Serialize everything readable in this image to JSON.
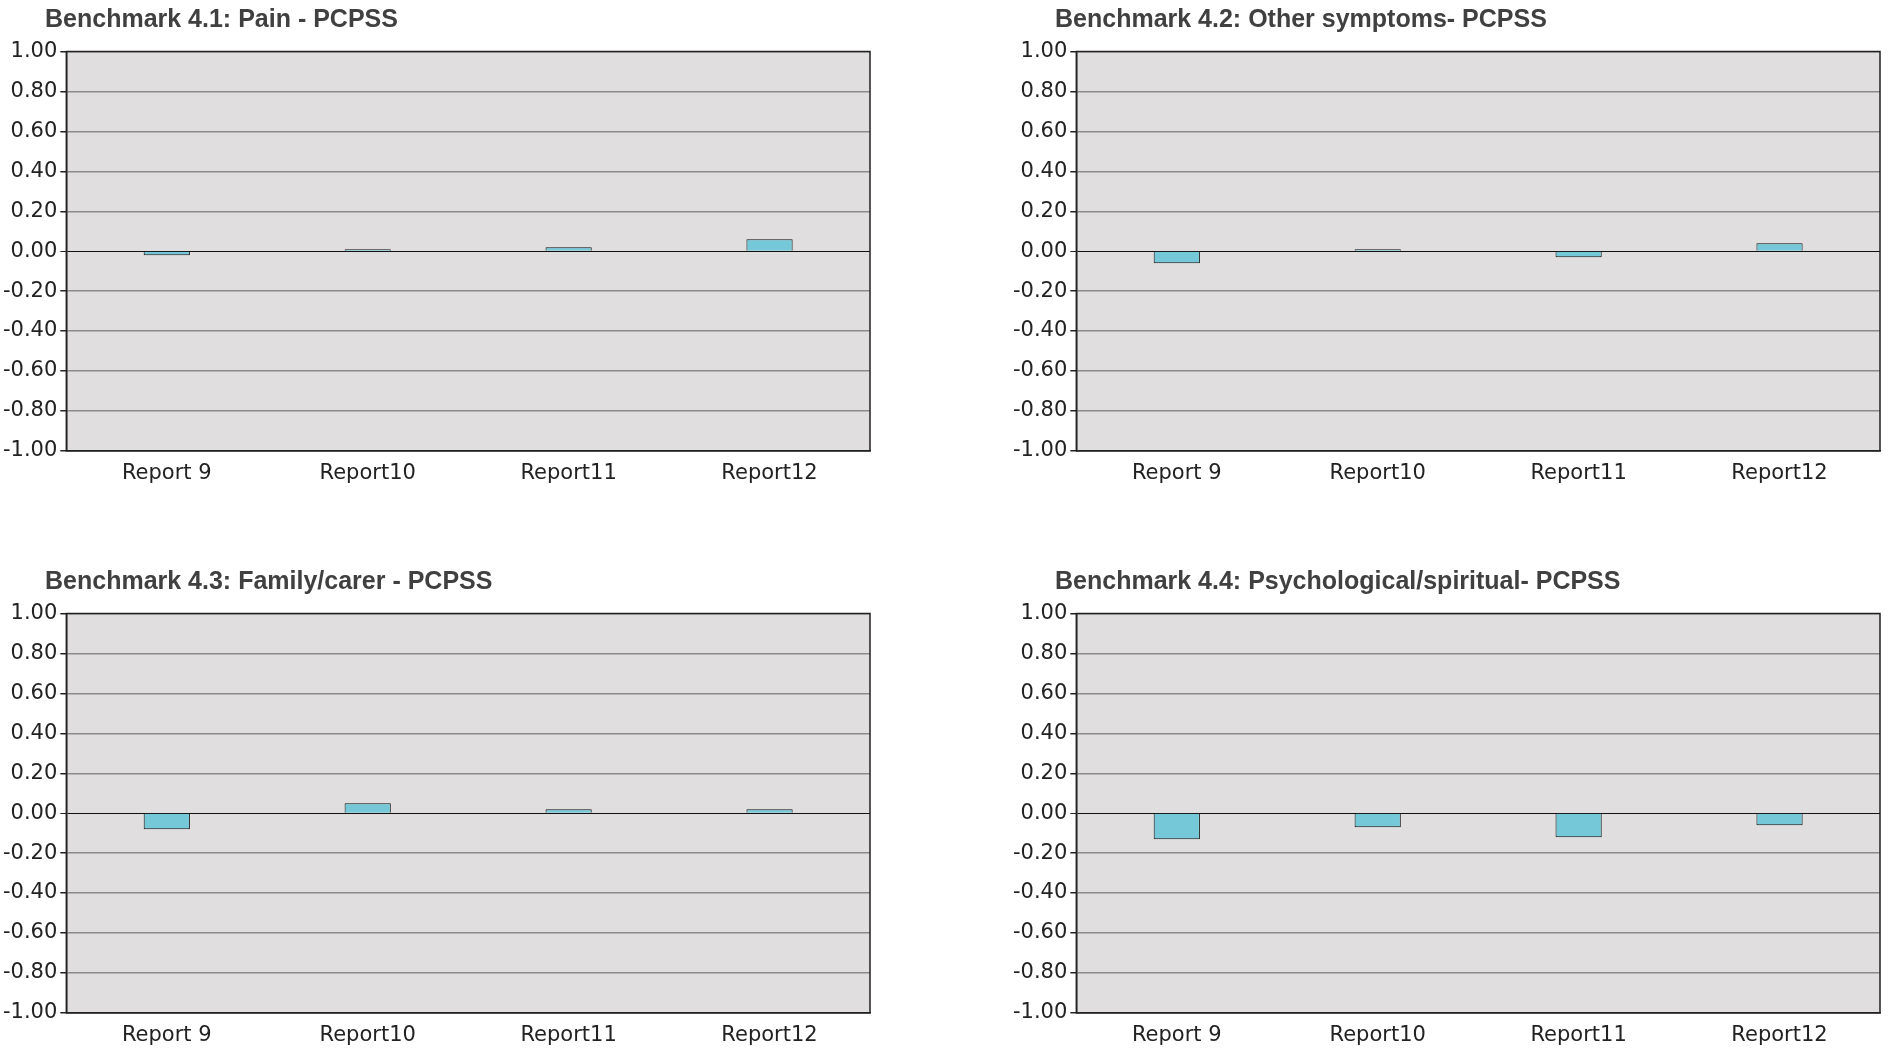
{
  "chart_data": [
    {
      "type": "bar",
      "title": "Benchmark 4.1:  Pain - PCPSS",
      "categories": [
        "Report 9",
        "Report10",
        "Report11",
        "Report12"
      ],
      "values": [
        -0.02,
        0.01,
        0.02,
        0.06
      ],
      "color": "#74c8d8",
      "ylim": [
        -1,
        1
      ],
      "yticks": [
        {
          "value": -1,
          "label": "-1.00"
        },
        {
          "value": -0.8,
          "label": "-0.80"
        },
        {
          "value": -0.6,
          "label": "-0.60"
        },
        {
          "value": -0.4,
          "label": "-0.40"
        },
        {
          "value": -0.2,
          "label": "-0.20"
        },
        {
          "value": 0,
          "label": "0.00"
        },
        {
          "value": 0.2,
          "label": "0.20"
        },
        {
          "value": 0.4,
          "label": "0.40"
        },
        {
          "value": 0.6,
          "label": "0.60"
        },
        {
          "value": 0.8,
          "label": "0.80"
        },
        {
          "value": 1,
          "label": "1.00"
        }
      ],
      "grid": "y"
    },
    {
      "type": "bar",
      "title": "Benchmark 4.2: Other symptoms- PCPSS",
      "categories": [
        "Report 9",
        "Report10",
        "Report11",
        "Report12"
      ],
      "values": [
        -0.06,
        0.01,
        -0.03,
        0.04
      ],
      "color": "#74c8d8",
      "ylim": [
        -1,
        1
      ],
      "yticks": [
        {
          "value": -1,
          "label": "-1.00"
        },
        {
          "value": -0.8,
          "label": "-0.80"
        },
        {
          "value": -0.6,
          "label": "-0.60"
        },
        {
          "value": -0.4,
          "label": "-0.40"
        },
        {
          "value": -0.2,
          "label": "-0.20"
        },
        {
          "value": 0,
          "label": "0.00"
        },
        {
          "value": 0.2,
          "label": "0.20"
        },
        {
          "value": 0.4,
          "label": "0.40"
        },
        {
          "value": 0.6,
          "label": "0.60"
        },
        {
          "value": 0.8,
          "label": "0.80"
        },
        {
          "value": 1,
          "label": "1.00"
        }
      ],
      "grid": "y"
    },
    {
      "type": "bar",
      "title": "Benchmark 4.3: Family/carer - PCPSS",
      "categories": [
        "Report 9",
        "Report10",
        "Report11",
        "Report12"
      ],
      "values": [
        -0.08,
        0.05,
        0.02,
        0.02
      ],
      "color": "#74c8d8",
      "ylim": [
        -1,
        1
      ],
      "yticks": [
        {
          "value": -1,
          "label": "-1.00"
        },
        {
          "value": -0.8,
          "label": "-0.80"
        },
        {
          "value": -0.6,
          "label": "-0.60"
        },
        {
          "value": -0.4,
          "label": "-0.40"
        },
        {
          "value": -0.2,
          "label": "-0.20"
        },
        {
          "value": 0,
          "label": "0.00"
        },
        {
          "value": 0.2,
          "label": "0.20"
        },
        {
          "value": 0.4,
          "label": "0.40"
        },
        {
          "value": 0.6,
          "label": "0.60"
        },
        {
          "value": 0.8,
          "label": "0.80"
        },
        {
          "value": 1,
          "label": "1.00"
        }
      ],
      "grid": "y"
    },
    {
      "type": "bar",
      "title": "Benchmark 4.4: Psychological/spiritual- PCPSS",
      "categories": [
        "Report 9",
        "Report10",
        "Report11",
        "Report12"
      ],
      "values": [
        -0.13,
        -0.07,
        -0.12,
        -0.06
      ],
      "color": "#74c8d8",
      "ylim": [
        -1,
        1
      ],
      "yticks": [
        {
          "value": -1,
          "label": "-1.00"
        },
        {
          "value": -0.8,
          "label": "-0.80"
        },
        {
          "value": -0.6,
          "label": "-0.60"
        },
        {
          "value": -0.4,
          "label": "-0.40"
        },
        {
          "value": -0.2,
          "label": "-0.20"
        },
        {
          "value": 0,
          "label": "0.00"
        },
        {
          "value": 0.2,
          "label": "0.20"
        },
        {
          "value": 0.4,
          "label": "0.40"
        },
        {
          "value": 0.6,
          "label": "0.60"
        },
        {
          "value": 0.8,
          "label": "0.80"
        },
        {
          "value": 1,
          "label": "1.00"
        }
      ],
      "grid": "y"
    }
  ]
}
